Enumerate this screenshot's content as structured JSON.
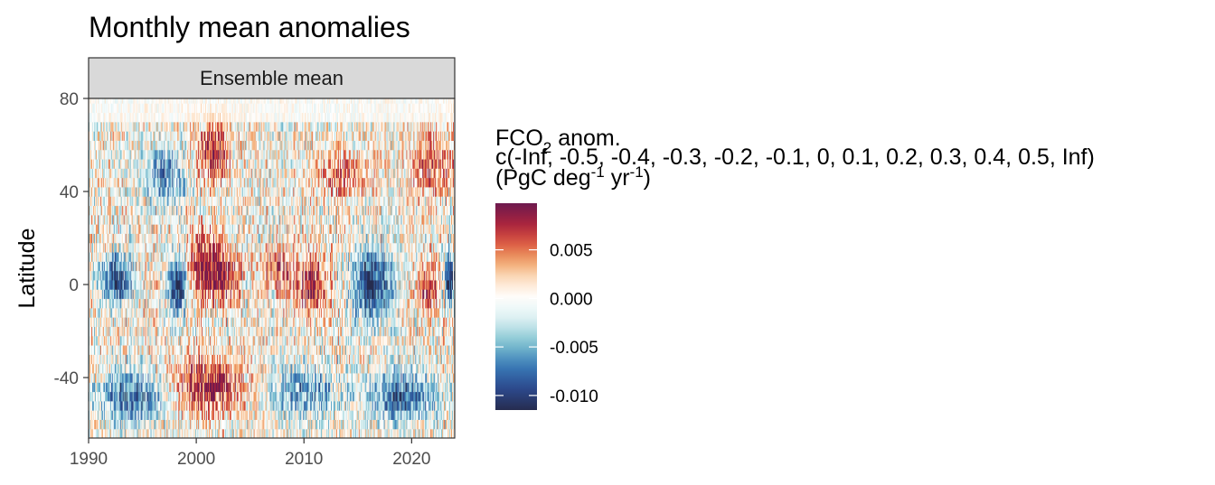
{
  "chart_data": {
    "type": "heatmap",
    "title": "Monthly mean anomalies",
    "facet": "Ensemble mean",
    "xlabel": "",
    "ylabel": "Latitude",
    "x_range": [
      1990,
      2024
    ],
    "y_range": [
      -66,
      80
    ],
    "x_ticks": [
      1990,
      2000,
      2010,
      2020
    ],
    "y_ticks": [
      -40,
      0,
      40,
      80
    ],
    "legend": {
      "title_line1_base": "FCO",
      "title_line1_sub": "2",
      "title_line1_rest": " anom.",
      "title_line2": "c(-Inf, -0.5, -0.4, -0.3, -0.2, -0.1, 0, 0.1, 0.2, 0.3, 0.4, 0.5, Inf)",
      "title_line3_a": "(PgC deg",
      "title_line3_sup1": "-1",
      "title_line3_b": " yr",
      "title_line3_sup2": "-1",
      "title_line3_c": ")",
      "range": [
        -0.0115,
        0.0098
      ],
      "breaks": [
        -0.01,
        -0.005,
        0.0,
        0.005
      ],
      "labels": [
        "-0.010",
        "-0.005",
        "0.000",
        "0.005"
      ],
      "position": "right"
    },
    "palette": [
      "#262c4f",
      "#2c4a8f",
      "#3a7cb8",
      "#7fc3d1",
      "#d7eef0",
      "#ffffff",
      "#fde1c6",
      "#f0a266",
      "#d9523f",
      "#a4213e",
      "#6e1a4f"
    ],
    "color_value_range": [
      -0.0115,
      0.0098
    ],
    "features": [
      {
        "year": 1992.5,
        "lat": 0,
        "value": -0.01,
        "dx": 1.4,
        "dy": 10
      },
      {
        "year": 1998.3,
        "lat": -2,
        "value": -0.0115,
        "dx": 0.8,
        "dy": 12
      },
      {
        "year": 2000.8,
        "lat": 6,
        "value": 0.009,
        "dx": 1.6,
        "dy": 14
      },
      {
        "year": 2003.0,
        "lat": 2,
        "value": 0.006,
        "dx": 1.2,
        "dy": 10
      },
      {
        "year": 2007.6,
        "lat": 4,
        "value": 0.006,
        "dx": 1.4,
        "dy": 10
      },
      {
        "year": 2010.8,
        "lat": -2,
        "value": 0.008,
        "dx": 1.3,
        "dy": 12
      },
      {
        "year": 2016.3,
        "lat": -2,
        "value": -0.0115,
        "dx": 1.6,
        "dy": 14
      },
      {
        "year": 2021.5,
        "lat": -2,
        "value": 0.007,
        "dx": 1.0,
        "dy": 10
      },
      {
        "year": 2023.5,
        "lat": 0,
        "value": -0.01,
        "dx": 0.5,
        "dy": 10
      },
      {
        "year": 1994.0,
        "lat": -50,
        "value": -0.008,
        "dx": 3.0,
        "dy": 10
      },
      {
        "year": 2001.0,
        "lat": -45,
        "value": 0.008,
        "dx": 3.0,
        "dy": 12
      },
      {
        "year": 2010.0,
        "lat": -48,
        "value": -0.006,
        "dx": 3.0,
        "dy": 10
      },
      {
        "year": 2019.0,
        "lat": -50,
        "value": -0.008,
        "dx": 3.0,
        "dy": 10
      },
      {
        "year": 1997.0,
        "lat": 45,
        "value": -0.006,
        "dx": 2.0,
        "dy": 12
      },
      {
        "year": 2001.5,
        "lat": 55,
        "value": 0.008,
        "dx": 1.5,
        "dy": 12
      },
      {
        "year": 2014.0,
        "lat": 45,
        "value": 0.005,
        "dx": 2.5,
        "dy": 10
      },
      {
        "year": 2022.0,
        "lat": 50,
        "value": 0.006,
        "dx": 2.0,
        "dy": 12
      }
    ]
  }
}
